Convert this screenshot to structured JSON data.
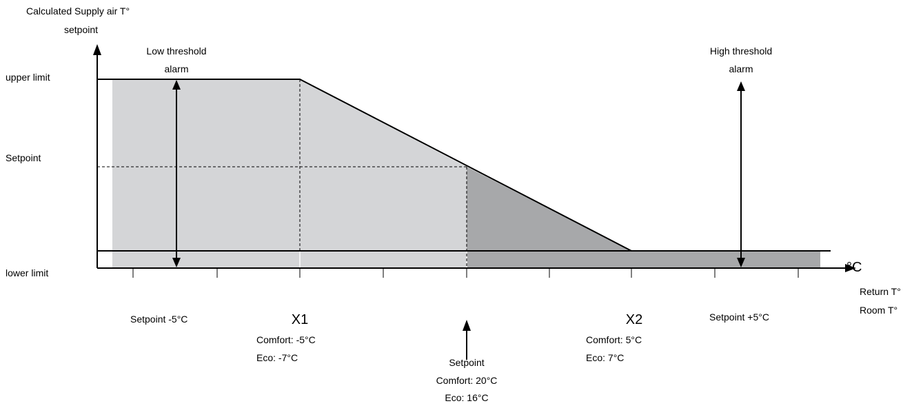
{
  "y_axis": {
    "title_line1": "Calculated Supply air T°",
    "title_line2": "setpoint",
    "upper_label": "upper limit",
    "setpoint_label": "Setpoint",
    "lower_label": "lower limit"
  },
  "x_axis": {
    "unit": "°C",
    "title_line1": "Return T°",
    "title_line2": "Room T°"
  },
  "low_alarm": {
    "line1": "Low  threshold",
    "line2": "alarm"
  },
  "high_alarm": {
    "line1": "High  threshold",
    "line2": "alarm"
  },
  "setpoint_minus": "Setpoint -5°C",
  "setpoint_plus": "Setpoint +5°C",
  "x1": {
    "name": "X1",
    "comfort": "Comfort: -5°C",
    "eco": "Eco:  -7°C"
  },
  "x2": {
    "name": "X2",
    "comfort": "Comfort: 5°C",
    "eco": "Eco:  7°C"
  },
  "setpoint": {
    "line1": "Setpoint",
    "comfort": "Comfort: 20°C",
    "eco": "Eco:  16°C"
  },
  "colors": {
    "light_fill": "#d4d5d7",
    "dark_fill": "#a7a8aa",
    "line": "#000000"
  }
}
